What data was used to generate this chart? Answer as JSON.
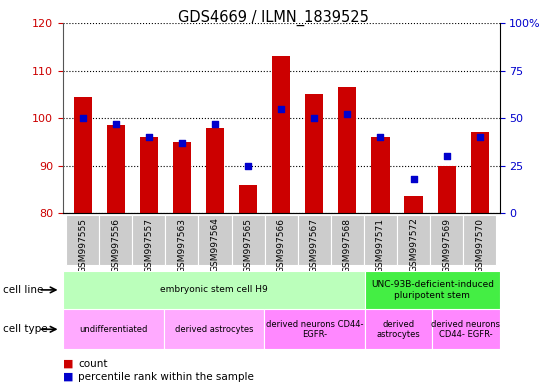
{
  "title": "GDS4669 / ILMN_1839525",
  "samples": [
    "GSM997555",
    "GSM997556",
    "GSM997557",
    "GSM997563",
    "GSM997564",
    "GSM997565",
    "GSM997566",
    "GSM997567",
    "GSM997568",
    "GSM997571",
    "GSM997572",
    "GSM997569",
    "GSM997570"
  ],
  "counts": [
    104.5,
    98.5,
    96.0,
    95.0,
    98.0,
    86.0,
    113.0,
    105.0,
    106.5,
    96.0,
    83.5,
    90.0,
    97.0
  ],
  "percentiles": [
    50,
    47,
    40,
    37,
    47,
    25,
    55,
    50,
    52,
    40,
    18,
    30,
    40
  ],
  "ylim_left": [
    80,
    120
  ],
  "ylim_right": [
    0,
    100
  ],
  "yticks_left": [
    80,
    90,
    100,
    110,
    120
  ],
  "yticks_right": [
    0,
    25,
    50,
    75,
    100
  ],
  "bar_color": "#cc0000",
  "dot_color": "#0000cc",
  "bar_bottom": 80,
  "cell_line_groups": [
    {
      "label": "embryonic stem cell H9",
      "start": 0,
      "end": 9,
      "color": "#bbffbb"
    },
    {
      "label": "UNC-93B-deficient-induced\npluripotent stem",
      "start": 9,
      "end": 13,
      "color": "#44ee44"
    }
  ],
  "cell_type_groups": [
    {
      "label": "undifferentiated",
      "start": 0,
      "end": 3,
      "color": "#ffaaff"
    },
    {
      "label": "derived astrocytes",
      "start": 3,
      "end": 6,
      "color": "#ffaaff"
    },
    {
      "label": "derived neurons CD44-\nEGFR-",
      "start": 6,
      "end": 9,
      "color": "#ff88ff"
    },
    {
      "label": "derived\nastrocytes",
      "start": 9,
      "end": 11,
      "color": "#ff88ff"
    },
    {
      "label": "derived neurons\nCD44- EGFR-",
      "start": 11,
      "end": 13,
      "color": "#ff88ff"
    }
  ],
  "legend_count_color": "#cc0000",
  "legend_dot_color": "#0000cc",
  "grid_color": "#000000",
  "tick_color_left": "#cc0000",
  "tick_color_right": "#0000cc",
  "plot_bg": "#ffffff",
  "xticklabel_bg": "#cccccc"
}
